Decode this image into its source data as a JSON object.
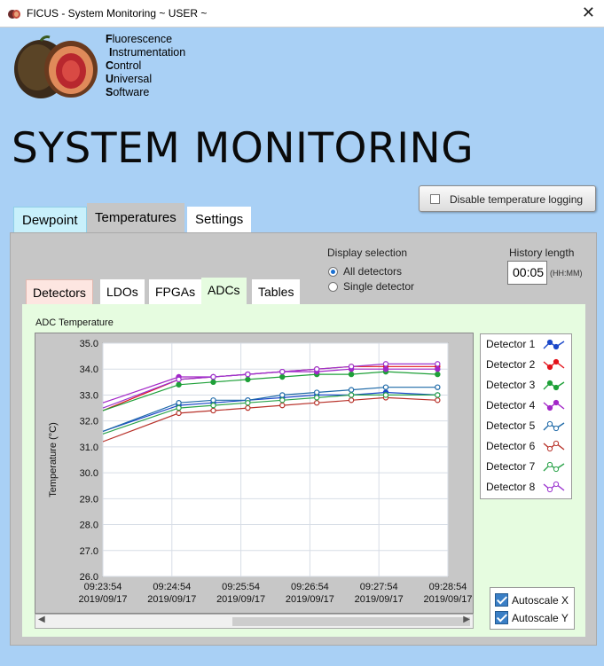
{
  "window": {
    "title": "FICUS - System Monitoring ~ USER ~",
    "close_glyph": "✕"
  },
  "logo": {
    "lines": [
      {
        "cap": "F",
        "rest": "luorescence"
      },
      {
        "cap": "I",
        "rest": "nstrumentation"
      },
      {
        "cap": "C",
        "rest": "ontrol"
      },
      {
        "cap": "U",
        "rest": "niversal"
      },
      {
        "cap": "S",
        "rest": "oftware"
      }
    ]
  },
  "page_title": "SYSTEM MONITORING",
  "disable_logging_label": "Disable temperature logging",
  "main_tabs": [
    "Dewpoint",
    "Temperatures",
    "Settings"
  ],
  "display_selection": {
    "label": "Display selection",
    "options": [
      "All detectors",
      "Single detector"
    ],
    "selected": "All detectors"
  },
  "history": {
    "label": "History length",
    "value": "00:05",
    "unit": "(HH:MM)"
  },
  "sub_tabs": [
    "Detectors",
    "LDOs",
    "FPGAs",
    "ADCs",
    "Tables"
  ],
  "autoscale": {
    "x_label": "Autoscale X",
    "y_label": "Autoscale Y",
    "x_checked": true,
    "y_checked": true
  },
  "colors": {
    "d1": "#1b48c9",
    "d2": "#e3141c",
    "d3": "#1ea038",
    "d4": "#a327c8",
    "d5": "#1f6aa8",
    "d6": "#b8322a",
    "d7": "#2ba34a",
    "d8": "#9b34cf"
  },
  "chart_data": {
    "type": "line",
    "title": "ADC Temperature",
    "ylabel": "Temperature (°C)",
    "xlabel": "",
    "ylim": [
      26.0,
      35.0
    ],
    "yticks": [
      "26.0",
      "27.0",
      "28.0",
      "29.0",
      "30.0",
      "31.0",
      "32.0",
      "33.0",
      "34.0",
      "35.0"
    ],
    "xlim": [
      "09:23:54",
      "09:28:54"
    ],
    "xticks": [
      [
        "09:23:54",
        "2019/09/17"
      ],
      [
        "09:24:54",
        "2019/09/17"
      ],
      [
        "09:25:54",
        "2019/09/17"
      ],
      [
        "09:26:54",
        "2019/09/17"
      ],
      [
        "09:27:54",
        "2019/09/17"
      ],
      [
        "09:28:54",
        "2019/09/17"
      ]
    ],
    "grid": true,
    "legend": "right",
    "series": [
      {
        "name": "Detector 1",
        "marker": "filled",
        "start": [
          "09:23:54",
          31.6
        ],
        "points": [
          [
            "09:25:00",
            32.6
          ],
          [
            "09:25:30",
            32.7
          ],
          [
            "09:26:00",
            32.8
          ],
          [
            "09:26:30",
            32.9
          ],
          [
            "09:27:00",
            33.0
          ],
          [
            "09:27:30",
            33.0
          ],
          [
            "09:28:00",
            33.1
          ],
          [
            "09:28:45",
            33.0
          ]
        ]
      },
      {
        "name": "Detector 2",
        "marker": "filled",
        "start": [
          "09:23:54",
          32.4
        ],
        "points": [
          [
            "09:25:00",
            33.6
          ],
          [
            "09:25:30",
            33.7
          ],
          [
            "09:26:00",
            33.8
          ],
          [
            "09:26:30",
            33.9
          ],
          [
            "09:27:00",
            34.0
          ],
          [
            "09:27:30",
            34.1
          ],
          [
            "09:28:00",
            34.1
          ],
          [
            "09:28:45",
            34.1
          ]
        ]
      },
      {
        "name": "Detector 3",
        "marker": "filled",
        "start": [
          "09:23:54",
          32.4
        ],
        "points": [
          [
            "09:25:00",
            33.4
          ],
          [
            "09:25:30",
            33.5
          ],
          [
            "09:26:00",
            33.6
          ],
          [
            "09:26:30",
            33.7
          ],
          [
            "09:27:00",
            33.8
          ],
          [
            "09:27:30",
            33.8
          ],
          [
            "09:28:00",
            33.9
          ],
          [
            "09:28:45",
            33.8
          ]
        ]
      },
      {
        "name": "Detector 4",
        "marker": "filled",
        "start": [
          "09:23:54",
          32.7
        ],
        "points": [
          [
            "09:25:00",
            33.7
          ],
          [
            "09:25:30",
            33.7
          ],
          [
            "09:26:00",
            33.8
          ],
          [
            "09:26:30",
            33.9
          ],
          [
            "09:27:00",
            33.9
          ],
          [
            "09:27:30",
            34.0
          ],
          [
            "09:28:00",
            34.0
          ],
          [
            "09:28:45",
            34.0
          ]
        ]
      },
      {
        "name": "Detector 5",
        "marker": "open",
        "start": [
          "09:23:54",
          31.6
        ],
        "points": [
          [
            "09:25:00",
            32.7
          ],
          [
            "09:25:30",
            32.8
          ],
          [
            "09:26:00",
            32.8
          ],
          [
            "09:26:30",
            33.0
          ],
          [
            "09:27:00",
            33.1
          ],
          [
            "09:27:30",
            33.2
          ],
          [
            "09:28:00",
            33.3
          ],
          [
            "09:28:45",
            33.3
          ]
        ]
      },
      {
        "name": "Detector 6",
        "marker": "open",
        "start": [
          "09:23:54",
          31.2
        ],
        "points": [
          [
            "09:25:00",
            32.3
          ],
          [
            "09:25:30",
            32.4
          ],
          [
            "09:26:00",
            32.5
          ],
          [
            "09:26:30",
            32.6
          ],
          [
            "09:27:00",
            32.7
          ],
          [
            "09:27:30",
            32.8
          ],
          [
            "09:28:00",
            32.9
          ],
          [
            "09:28:45",
            32.8
          ]
        ]
      },
      {
        "name": "Detector 7",
        "marker": "open",
        "start": [
          "09:23:54",
          31.5
        ],
        "points": [
          [
            "09:25:00",
            32.5
          ],
          [
            "09:25:30",
            32.6
          ],
          [
            "09:26:00",
            32.7
          ],
          [
            "09:26:30",
            32.8
          ],
          [
            "09:27:00",
            32.9
          ],
          [
            "09:27:30",
            33.0
          ],
          [
            "09:28:00",
            33.0
          ],
          [
            "09:28:45",
            33.0
          ]
        ]
      },
      {
        "name": "Detector 8",
        "marker": "open",
        "start": [
          "09:23:54",
          32.5
        ],
        "points": [
          [
            "09:25:00",
            33.6
          ],
          [
            "09:25:30",
            33.7
          ],
          [
            "09:26:00",
            33.8
          ],
          [
            "09:26:30",
            33.9
          ],
          [
            "09:27:00",
            34.0
          ],
          [
            "09:27:30",
            34.1
          ],
          [
            "09:28:00",
            34.2
          ],
          [
            "09:28:45",
            34.2
          ]
        ]
      }
    ]
  }
}
